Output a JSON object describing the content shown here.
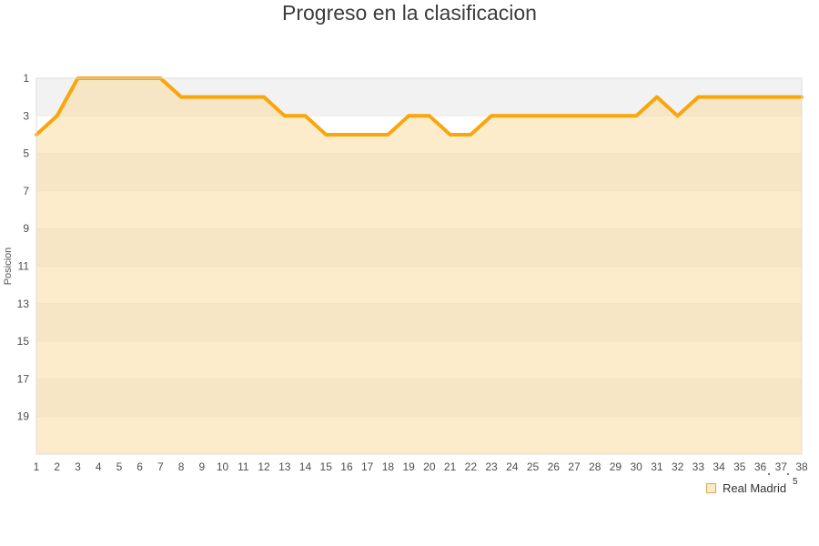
{
  "chart_data": {
    "type": "area",
    "title": "Progreso en la clasificacion",
    "xlabel": "",
    "ylabel": "Posicion",
    "x": [
      1,
      2,
      3,
      4,
      5,
      6,
      7,
      8,
      9,
      10,
      11,
      12,
      13,
      14,
      15,
      16,
      17,
      18,
      19,
      20,
      21,
      22,
      23,
      24,
      25,
      26,
      27,
      28,
      29,
      30,
      31,
      32,
      33,
      34,
      35,
      36,
      37,
      38
    ],
    "series": [
      {
        "name": "Real Madrid",
        "values": [
          4,
          3,
          1,
          1,
          1,
          1,
          1,
          2,
          2,
          2,
          2,
          2,
          3,
          3,
          4,
          4,
          4,
          4,
          3,
          3,
          4,
          4,
          3,
          3,
          3,
          3,
          3,
          3,
          3,
          3,
          2,
          3,
          2,
          2,
          2,
          2,
          2,
          2
        ]
      }
    ],
    "y_ticks": [
      1,
      3,
      5,
      7,
      9,
      11,
      13,
      15,
      17,
      19
    ],
    "ylim": [
      1,
      21
    ],
    "y_inverted": true,
    "grid": "horizontal-bands",
    "legend_position": "bottom-right",
    "colors": {
      "line": "#FAA50A",
      "area_fill": "rgba(251,217,151,0.5)",
      "band_dark": "#F2F2F2",
      "band_light": "#FFFFFF",
      "gridline": "rgba(0,0,0,0.05)",
      "plot_border": "#DCDCDC",
      "axis_text": "#4D4D4D",
      "title_text": "#3C3C3C"
    }
  },
  "legend": {
    "label": "Real Madrid",
    "artifact": "5"
  }
}
